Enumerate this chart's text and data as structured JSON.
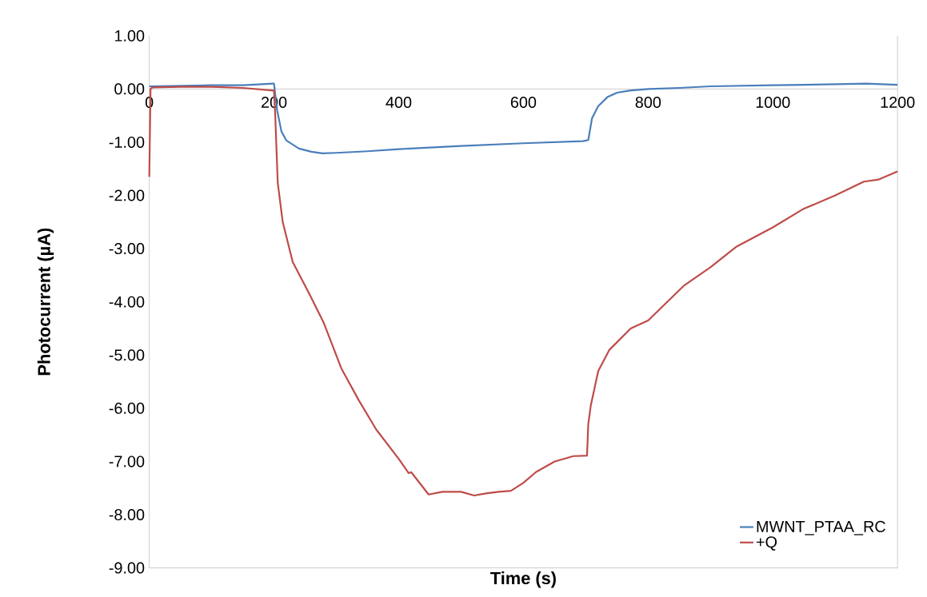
{
  "chart_data": {
    "type": "line",
    "xlabel": "Time (s)",
    "ylabel": "Photocurrent  (µA)",
    "xlim": [
      0,
      1200
    ],
    "ylim": [
      -9,
      1
    ],
    "xticks": [
      0,
      200,
      400,
      600,
      800,
      1000,
      1200
    ],
    "yticks": [
      {
        "value": 1,
        "label": "1.00"
      },
      {
        "value": 0,
        "label": "0.00"
      },
      {
        "value": -1,
        "label": "-1.00"
      },
      {
        "value": -2,
        "label": "-2.00"
      },
      {
        "value": -3,
        "label": "-3.00"
      },
      {
        "value": -4,
        "label": "-4.00"
      },
      {
        "value": -5,
        "label": "-5.00"
      },
      {
        "value": -6,
        "label": "-6.00"
      },
      {
        "value": -7,
        "label": "-7.00"
      },
      {
        "value": -8,
        "label": "-8.00"
      },
      {
        "value": -9,
        "label": "-9.00"
      }
    ],
    "legend": "bottom right",
    "marker": "none",
    "line_style": "solid",
    "series": [
      {
        "name": "MWNT_PTAA_RC",
        "color": "#4a7ebb",
        "x": [
          0,
          50,
          100,
          150,
          198,
          200,
          205,
          212,
          220,
          240,
          260,
          278,
          300,
          350,
          400,
          500,
          600,
          695,
          700,
          704,
          710,
          720,
          735,
          750,
          770,
          800,
          850,
          900,
          950,
          1000,
          1050,
          1100,
          1150,
          1200
        ],
        "values": [
          0.05,
          0.06,
          0.07,
          0.07,
          0.1,
          0.1,
          -0.4,
          -0.8,
          -0.97,
          -1.12,
          -1.18,
          -1.21,
          -1.2,
          -1.17,
          -1.13,
          -1.07,
          -1.02,
          -0.98,
          -0.97,
          -0.96,
          -0.55,
          -0.32,
          -0.15,
          -0.07,
          -0.03,
          0.0,
          0.02,
          0.05,
          0.06,
          0.07,
          0.08,
          0.09,
          0.1,
          0.08
        ]
      },
      {
        "name": "+Q",
        "color": "#be4b48",
        "x": [
          0,
          2,
          5,
          50,
          100,
          150,
          200,
          202,
          206,
          214,
          230,
          257,
          280,
          308,
          336,
          364,
          400,
          416,
          420,
          448,
          470,
          500,
          521,
          540,
          560,
          580,
          600,
          620,
          650,
          680,
          702,
          704,
          708,
          720,
          738,
          772,
          800,
          857,
          900,
          942,
          1000,
          1048,
          1100,
          1146,
          1170,
          1200
        ],
        "values": [
          -1.65,
          0.0,
          0.03,
          0.04,
          0.04,
          0.02,
          -0.03,
          -0.5,
          -1.76,
          -2.5,
          -3.25,
          -3.86,
          -4.4,
          -5.25,
          -5.85,
          -6.4,
          -6.95,
          -7.22,
          -7.2,
          -7.62,
          -7.57,
          -7.57,
          -7.64,
          -7.6,
          -7.57,
          -7.55,
          -7.4,
          -7.2,
          -7.0,
          -6.9,
          -6.89,
          -6.3,
          -5.95,
          -5.3,
          -4.9,
          -4.5,
          -4.35,
          -3.7,
          -3.35,
          -2.96,
          -2.6,
          -2.26,
          -2.0,
          -1.74,
          -1.7,
          -1.55
        ]
      }
    ]
  }
}
